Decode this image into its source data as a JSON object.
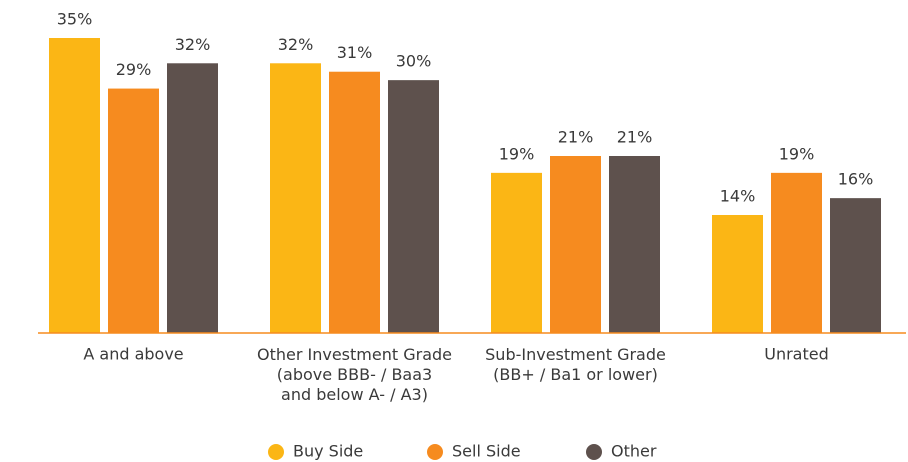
{
  "chart_data": {
    "type": "bar",
    "categories": [
      "A and above",
      "Other Investment Grade\n(above BBB- / Baa3\nand below A- / A3)",
      "Sub-Investment Grade\n(BB+ / Ba1 or lower)",
      "Unrated"
    ],
    "series": [
      {
        "name": "Buy Side",
        "color": "#fbb615",
        "values": [
          35,
          32,
          19,
          14
        ],
        "value_labels": [
          "35%",
          "32%",
          "19%",
          "14%"
        ]
      },
      {
        "name": "Sell Side",
        "color": "#f68b1f",
        "values": [
          29,
          31,
          21,
          19
        ],
        "value_labels": [
          "29%",
          "31%",
          "21%",
          "19%"
        ]
      },
      {
        "name": "Other",
        "color": "#5e514d",
        "values": [
          32,
          30,
          21,
          16
        ],
        "value_labels": [
          "32%",
          "30%",
          "21%",
          "16%"
        ]
      }
    ],
    "ylim": [
      0,
      35
    ],
    "grid": false,
    "legend": "bottom"
  }
}
